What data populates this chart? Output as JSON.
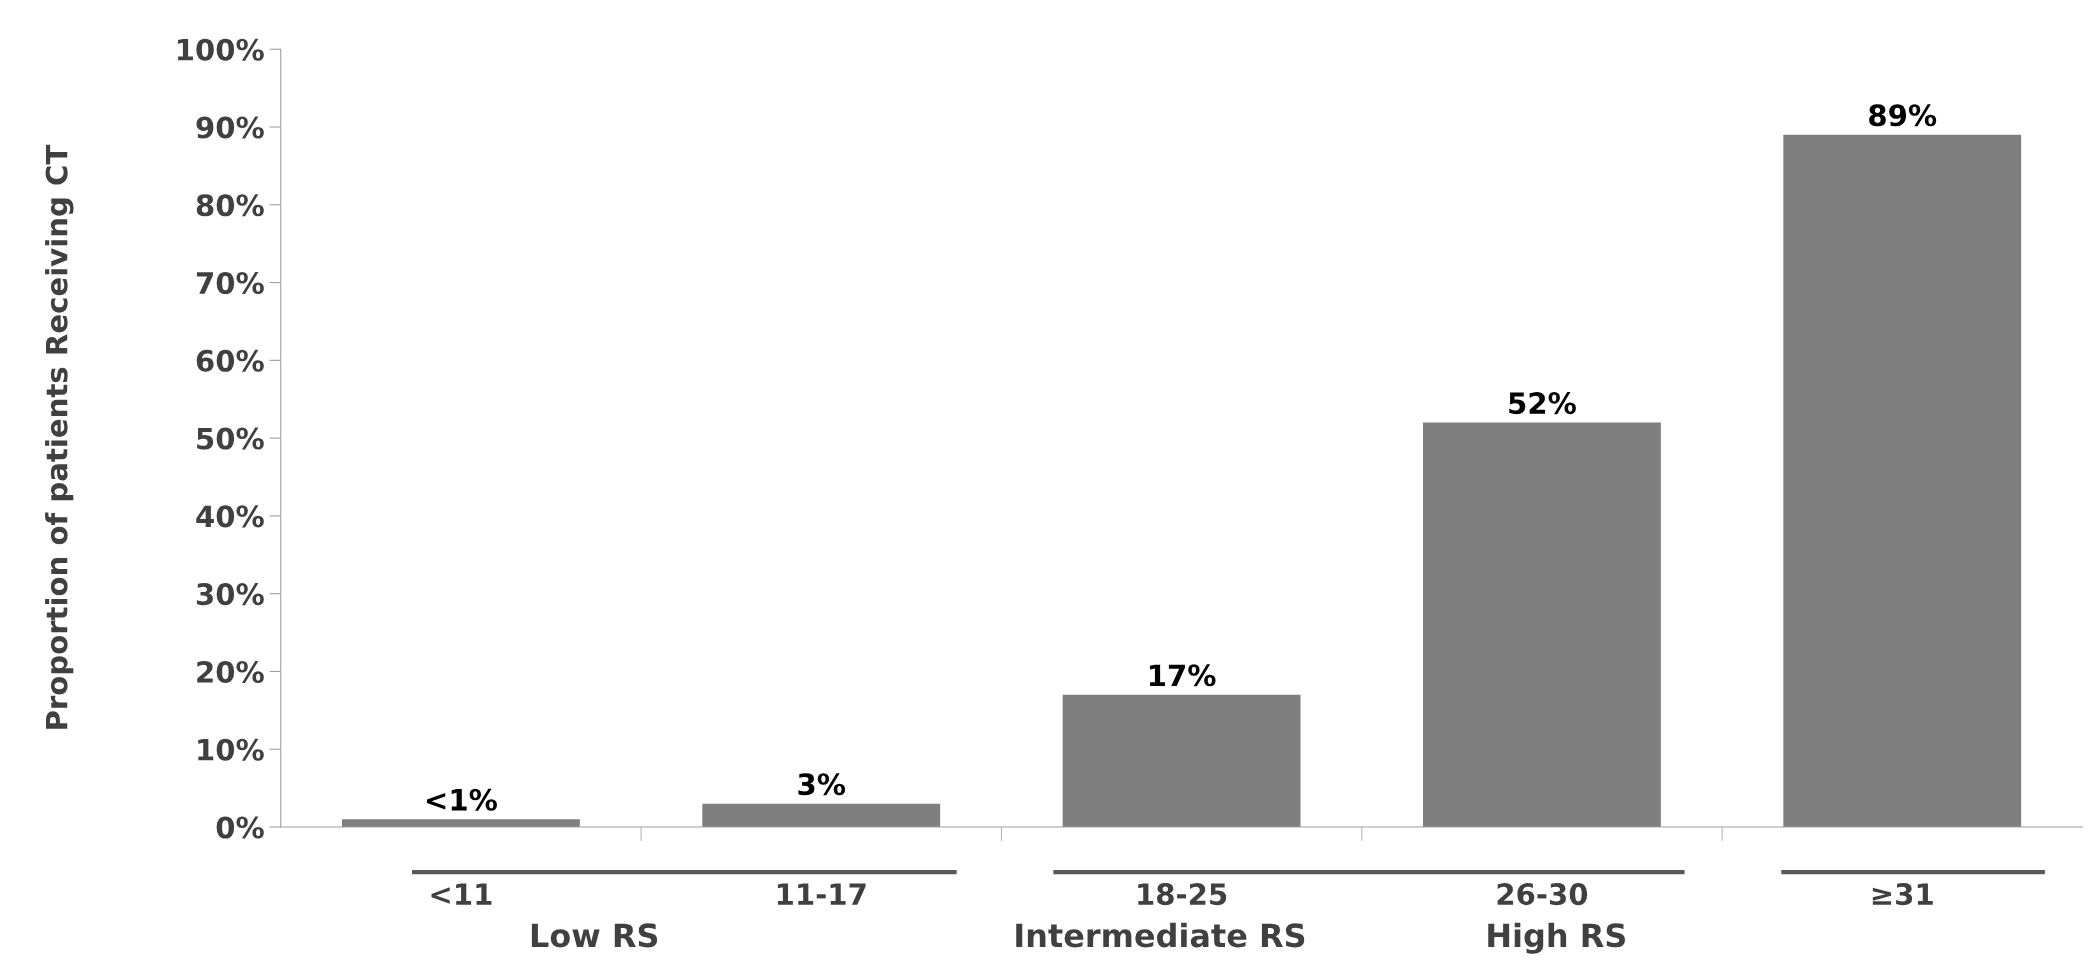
{
  "chart_data": {
    "type": "bar",
    "ylabel": "Proportion of patients Receiving CT",
    "categories": [
      "<11",
      "11-17",
      "18-25",
      "26-30",
      "≥31"
    ],
    "values": [
      1,
      3,
      17,
      52,
      89
    ],
    "value_labels": [
      "<1%",
      "3%",
      "17%",
      "52%",
      "89%"
    ],
    "color": "#7f7f7f",
    "ylim": [
      0,
      100
    ],
    "yticks": [
      {
        "value": 0,
        "label": "0%"
      },
      {
        "value": 10,
        "label": "10%"
      },
      {
        "value": 20,
        "label": "20%"
      },
      {
        "value": 30,
        "label": "30%"
      },
      {
        "value": 40,
        "label": "40%"
      },
      {
        "value": 50,
        "label": "50%"
      },
      {
        "value": 60,
        "label": "60%"
      },
      {
        "value": 70,
        "label": "70%"
      },
      {
        "value": 80,
        "label": "80%"
      },
      {
        "value": 90,
        "label": "90%"
      },
      {
        "value": 100,
        "label": "100%"
      }
    ],
    "annotations": [
      "Low RS",
      "Intermediate RS",
      "High RS"
    ],
    "grid": false,
    "legend": false
  }
}
